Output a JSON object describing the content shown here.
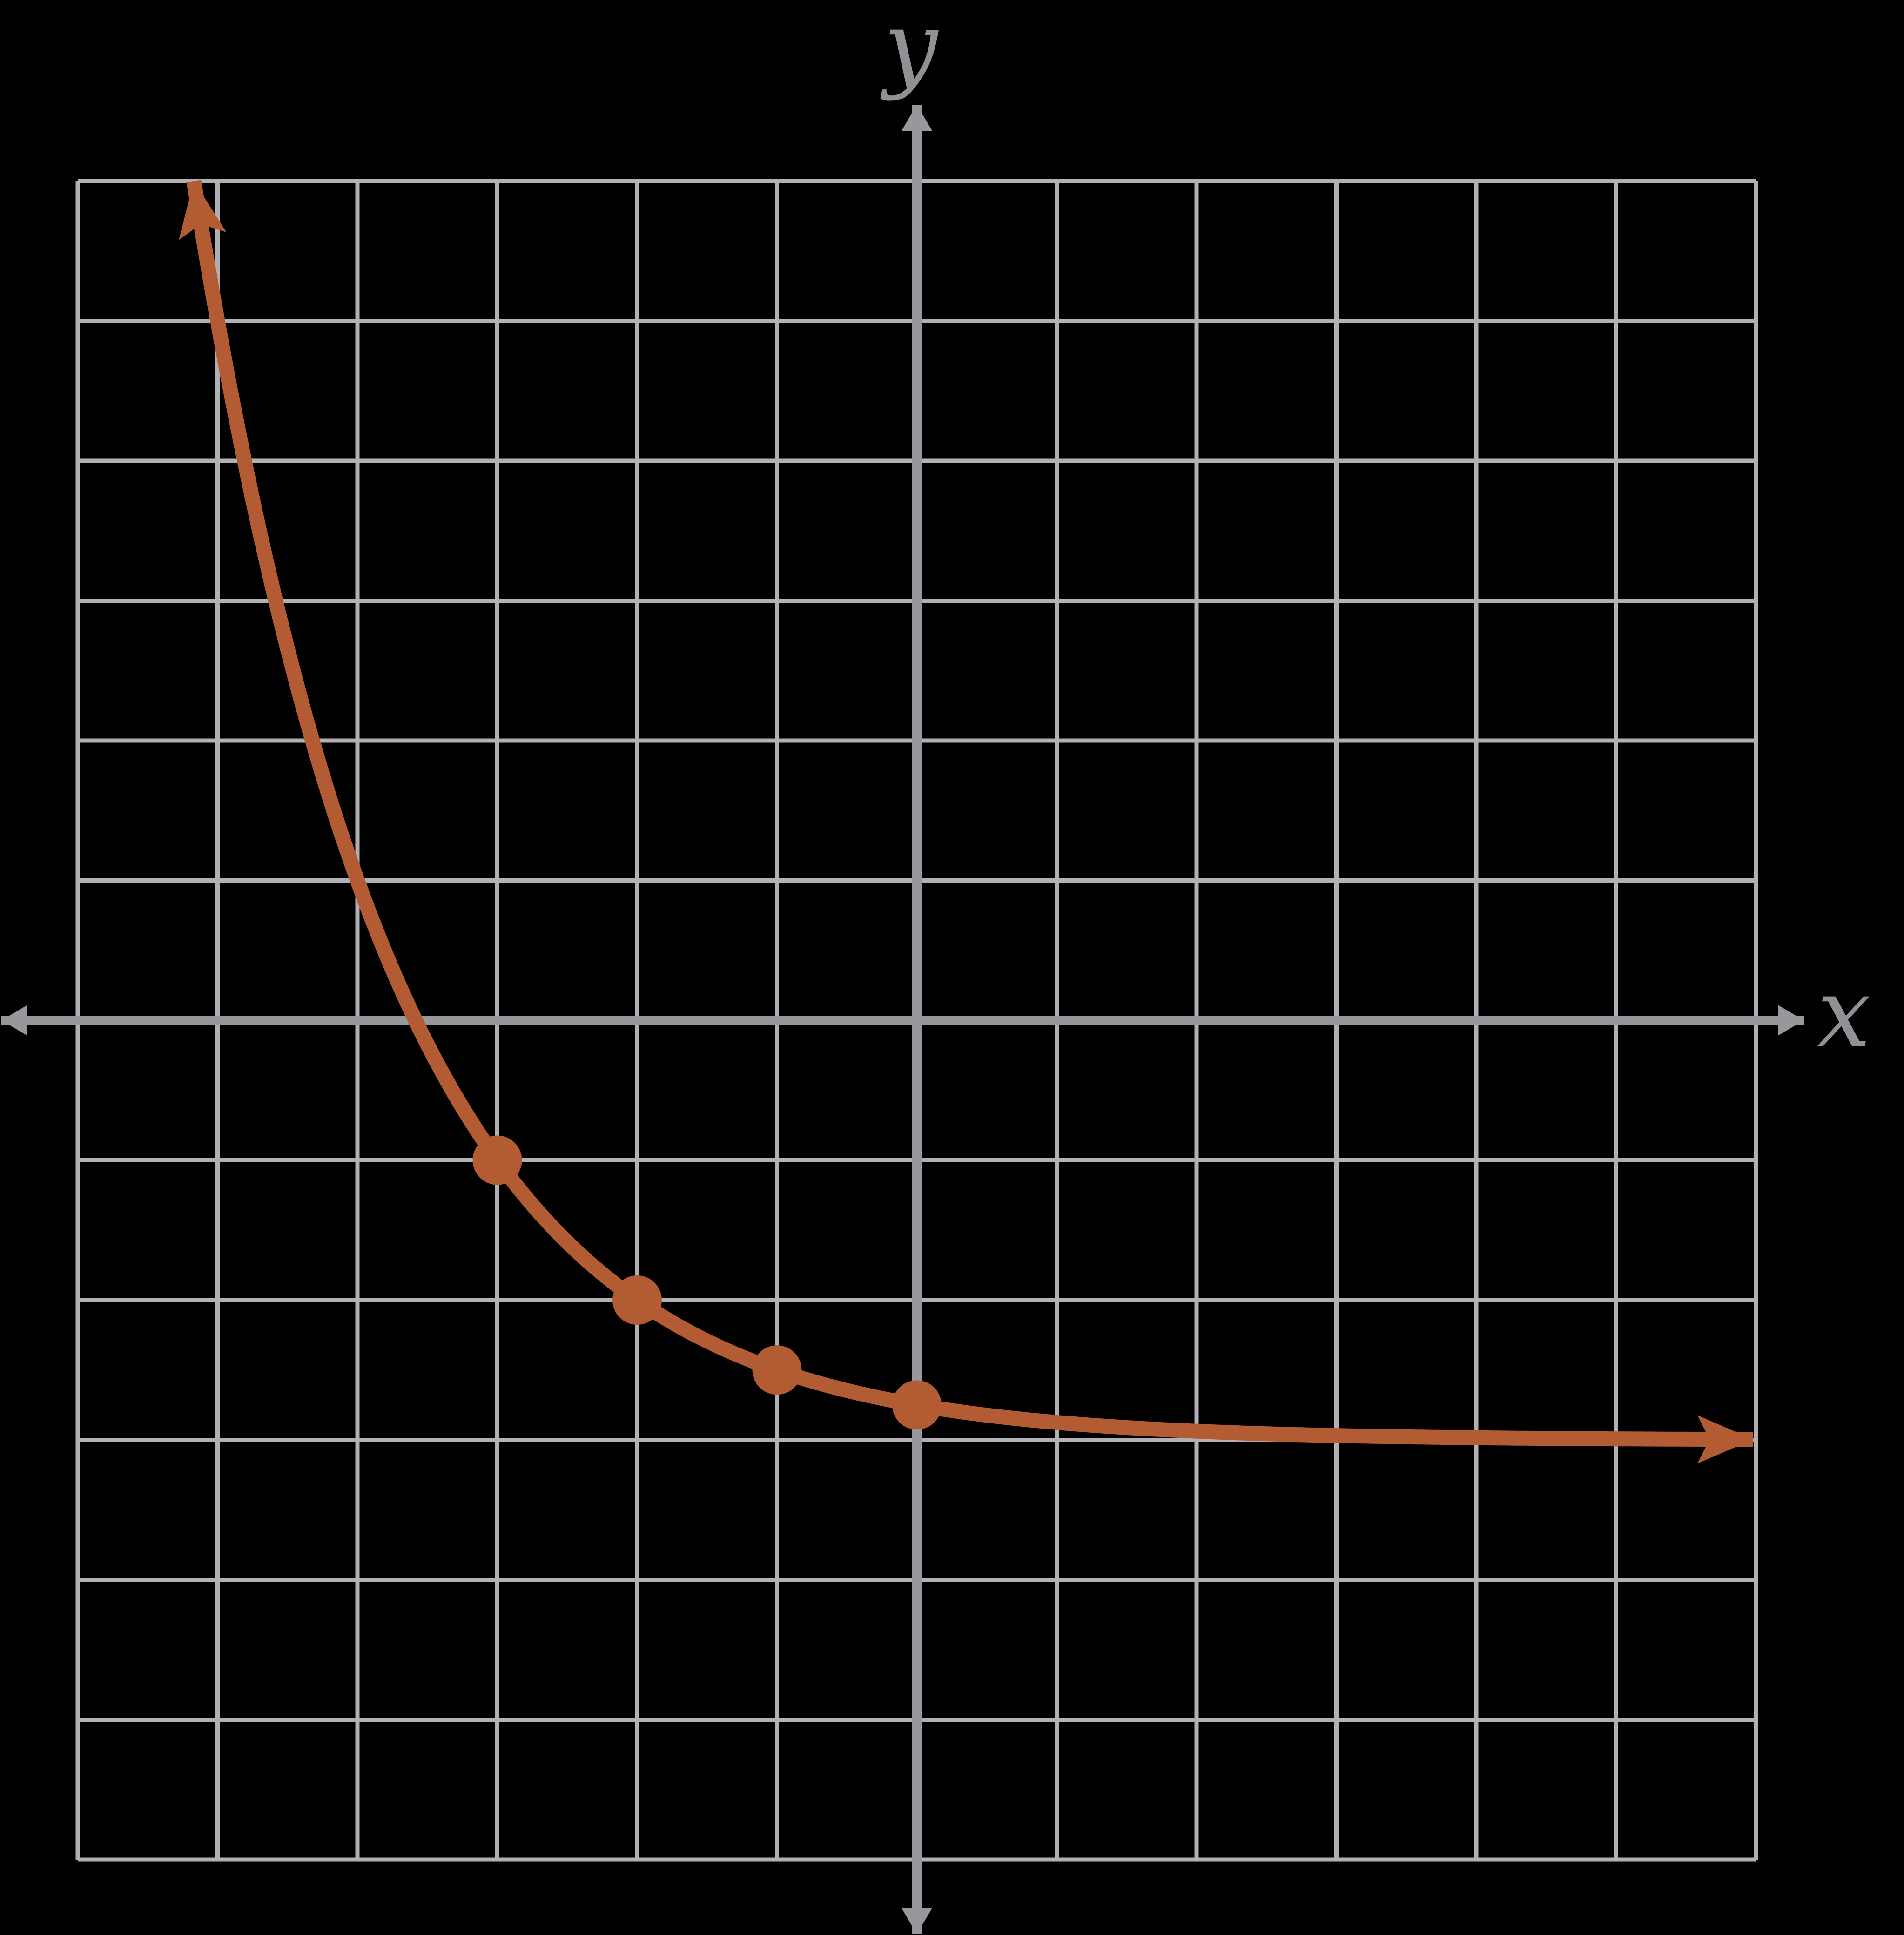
{
  "labels": {
    "x_axis": "x",
    "y_axis": "y"
  },
  "colors": {
    "background": "#000000",
    "grid_line": "#b1b1b5",
    "axis": "#97979c",
    "axis_label": "#909095",
    "curve": "#b35c33",
    "point": "#b35c33"
  },
  "chart_data": {
    "type": "line",
    "title": "",
    "xlabel": "x",
    "ylabel": "y",
    "xlim": [
      -6,
      6
    ],
    "ylim": [
      -6,
      6
    ],
    "grid_step": 1,
    "grid": "on",
    "legend": "none",
    "axes": {
      "style": "through-origin",
      "arrowheads": "both ends of each axis",
      "ticks_labeled": false
    },
    "series": [
      {
        "name": "exponential-decay-curve",
        "equation": "y = (1/4)*(1/2)^x - 3",
        "model": {
          "form": "y = a * base^x + c",
          "a": 0.25,
          "base": 0.5,
          "c": -3
        },
        "asymptote_y": -3,
        "x_drawn_from": -5.17,
        "x_drawn_to": 5.98,
        "arrowheads": [
          "start",
          "end"
        ]
      }
    ],
    "marked_points": [
      {
        "x": -3,
        "y": -1
      },
      {
        "x": -2,
        "y": -2
      },
      {
        "x": -1,
        "y": -2.5
      },
      {
        "x": 0,
        "y": -2.75
      }
    ]
  }
}
